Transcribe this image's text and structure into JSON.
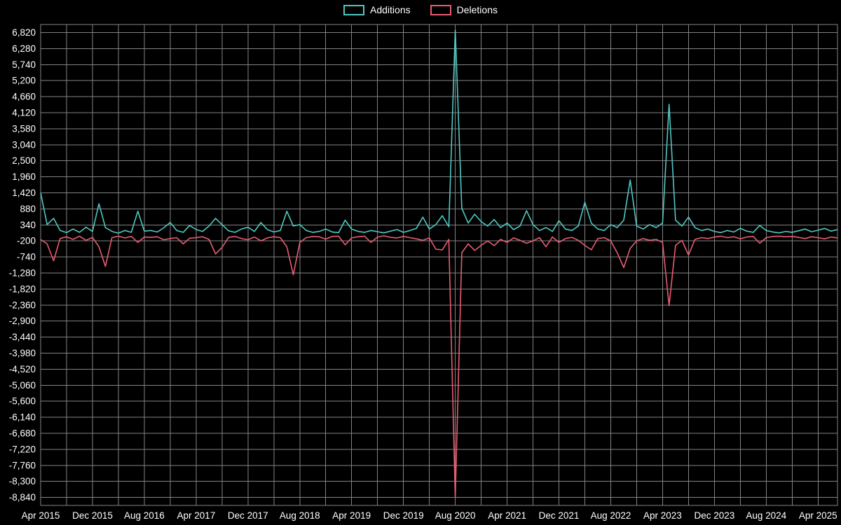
{
  "page": {
    "background": "#000000"
  },
  "legend": {
    "items": [
      {
        "label": "Additions",
        "color": "#4ec9c4"
      },
      {
        "label": "Deletions",
        "color": "#ea5c72"
      }
    ]
  },
  "chart_data": {
    "type": "line",
    "title": "",
    "xlabel": "",
    "ylabel": "",
    "background": "#000000",
    "grid": true,
    "grid_color": "#9a9a9a",
    "text_color": "#ffffff",
    "legend_position": "top-center",
    "ylim": [
      -9110,
      7090
    ],
    "x_unit": "months since Apr 2015 (one value per month)",
    "x_grid_step": 4,
    "y_ticks": [
      {
        "value": 6820,
        "label": "6,820"
      },
      {
        "value": 6280,
        "label": "6,280"
      },
      {
        "value": 5740,
        "label": "5,740"
      },
      {
        "value": 5200,
        "label": "5,200"
      },
      {
        "value": 4660,
        "label": "4,660"
      },
      {
        "value": 4120,
        "label": "4,120"
      },
      {
        "value": 3580,
        "label": "3,580"
      },
      {
        "value": 3040,
        "label": "3,040"
      },
      {
        "value": 2500,
        "label": "2,500"
      },
      {
        "value": 1960,
        "label": "1,960"
      },
      {
        "value": 1420,
        "label": "1,420"
      },
      {
        "value": 880,
        "label": "880"
      },
      {
        "value": 340,
        "label": "340"
      },
      {
        "value": -200,
        "label": "-200"
      },
      {
        "value": -740,
        "label": "-740"
      },
      {
        "value": -1280,
        "label": "-1,280"
      },
      {
        "value": -1820,
        "label": "-1,820"
      },
      {
        "value": -2360,
        "label": "-2,360"
      },
      {
        "value": -2900,
        "label": "-2,900"
      },
      {
        "value": -3440,
        "label": "-3,440"
      },
      {
        "value": -3980,
        "label": "-3,980"
      },
      {
        "value": -4520,
        "label": "-4,520"
      },
      {
        "value": -5060,
        "label": "-5,060"
      },
      {
        "value": -5600,
        "label": "-5,600"
      },
      {
        "value": -6140,
        "label": "-6,140"
      },
      {
        "value": -6680,
        "label": "-6,680"
      },
      {
        "value": -7220,
        "label": "-7,220"
      },
      {
        "value": -7760,
        "label": "-7,760"
      },
      {
        "value": -8300,
        "label": "-8,300"
      },
      {
        "value": -8840,
        "label": "-8,840"
      }
    ],
    "x_ticks": [
      {
        "t": 0,
        "label": "Apr 2015"
      },
      {
        "t": 8,
        "label": "Dec 2015"
      },
      {
        "t": 16,
        "label": "Aug 2016"
      },
      {
        "t": 24,
        "label": "Apr 2017"
      },
      {
        "t": 32,
        "label": "Dec 2017"
      },
      {
        "t": 40,
        "label": "Aug 2018"
      },
      {
        "t": 48,
        "label": "Apr 2019"
      },
      {
        "t": 56,
        "label": "Dec 2019"
      },
      {
        "t": 64,
        "label": "Aug 2020"
      },
      {
        "t": 72,
        "label": "Apr 2021"
      },
      {
        "t": 80,
        "label": "Dec 2021"
      },
      {
        "t": 88,
        "label": "Aug 2022"
      },
      {
        "t": 96,
        "label": "Apr 2023"
      },
      {
        "t": 104,
        "label": "Dec 2023"
      },
      {
        "t": 112,
        "label": "Aug 2024"
      },
      {
        "t": 120,
        "label": "Apr 2025"
      }
    ],
    "series": [
      {
        "name": "Additions",
        "color": "#4ec9c4",
        "values": [
          1420,
          350,
          560,
          150,
          80,
          200,
          90,
          260,
          120,
          1050,
          250,
          120,
          60,
          150,
          90,
          800,
          130,
          150,
          100,
          240,
          420,
          150,
          90,
          320,
          180,
          120,
          300,
          560,
          350,
          140,
          90,
          200,
          260,
          120,
          420,
          180,
          100,
          150,
          800,
          300,
          350,
          150,
          90,
          120,
          200,
          100,
          80,
          500,
          200,
          120,
          90,
          150,
          110,
          70,
          130,
          180,
          90,
          150,
          220,
          600,
          200,
          350,
          650,
          280,
          6900,
          900,
          400,
          700,
          450,
          300,
          520,
          250,
          400,
          180,
          300,
          820,
          350,
          150,
          250,
          120,
          480,
          200,
          150,
          300,
          1100,
          400,
          200,
          150,
          350,
          250,
          500,
          1850,
          300,
          200,
          350,
          250,
          400,
          4400,
          500,
          300,
          600,
          250,
          150,
          200,
          120,
          80,
          150,
          100,
          220,
          130,
          90,
          320,
          150,
          100,
          70,
          120,
          90,
          140,
          200,
          110,
          160,
          220,
          130,
          180
        ]
      },
      {
        "name": "Deletions",
        "color": "#ea5c72",
        "values": [
          -150,
          -300,
          -870,
          -120,
          -60,
          -150,
          -40,
          -180,
          -80,
          -400,
          -1060,
          -90,
          -40,
          -100,
          -50,
          -250,
          -70,
          -80,
          -60,
          -160,
          -120,
          -90,
          -300,
          -110,
          -90,
          -60,
          -150,
          -640,
          -420,
          -80,
          -50,
          -120,
          -160,
          -70,
          -200,
          -100,
          -60,
          -90,
          -400,
          -1340,
          -250,
          -90,
          -50,
          -60,
          -140,
          -50,
          -40,
          -330,
          -100,
          -60,
          -40,
          -250,
          -70,
          -30,
          -80,
          -100,
          -50,
          -90,
          -130,
          -180,
          -100,
          -480,
          -500,
          -150,
          -8840,
          -600,
          -300,
          -520,
          -350,
          -200,
          -360,
          -150,
          -250,
          -100,
          -180,
          -280,
          -200,
          -90,
          -400,
          -70,
          -250,
          -120,
          -80,
          -180,
          -350,
          -500,
          -120,
          -90,
          -200,
          -600,
          -1100,
          -450,
          -200,
          -120,
          -180,
          -150,
          -250,
          -2380,
          -350,
          -180,
          -680,
          -150,
          -90,
          -120,
          -70,
          -40,
          -90,
          -60,
          -130,
          -70,
          -50,
          -280,
          -90,
          -50,
          -40,
          -60,
          -50,
          -80,
          -120,
          -60,
          -90,
          -130,
          -70,
          -100
        ]
      }
    ]
  }
}
